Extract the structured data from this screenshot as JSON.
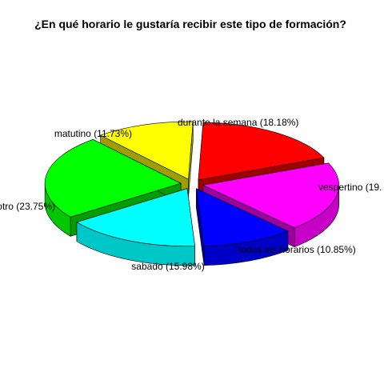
{
  "chart_data": {
    "type": "pie",
    "style": "3d-exploded",
    "title": "¿En qué horario le gustaría recibir este tipo de formación?",
    "slices": [
      {
        "label": "durante la semana (18.18%)",
        "value": 18.18,
        "color": "#ff0000"
      },
      {
        "label": "vespertino (19.",
        "value": 19.51,
        "color": "#ff00ff"
      },
      {
        "label": "todos los horarios (10.85%)",
        "value": 10.85,
        "color": "#0000ff"
      },
      {
        "label": "sabado (15.98%)",
        "value": 15.98,
        "color": "#00ffff"
      },
      {
        "label": "otro (23.75%)",
        "value": 23.75,
        "color": "#00ff00"
      },
      {
        "label": "matutino (11.73%)",
        "value": 11.73,
        "color": "#ffff00"
      }
    ]
  }
}
